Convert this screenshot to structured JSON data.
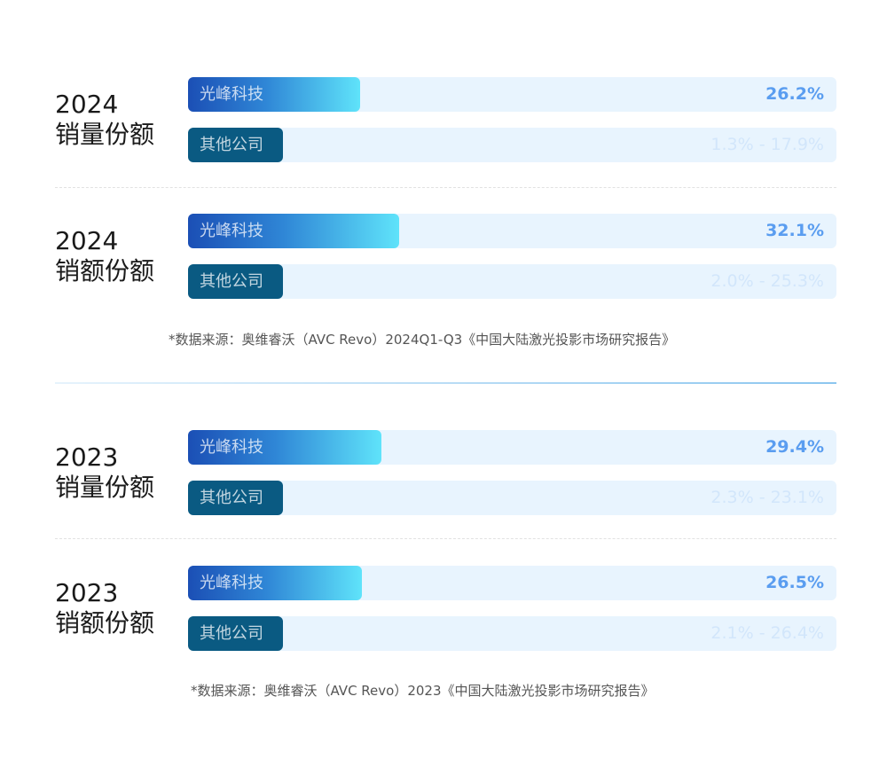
{
  "chart_data": [
    {
      "type": "bar",
      "year_label": "2024",
      "metric_label": "销量份额",
      "series": [
        {
          "name": "光峰科技",
          "value": 26.2,
          "label": "26.2%"
        },
        {
          "name": "其他公司",
          "range": [
            1.3,
            17.9
          ],
          "label": "1.3% - 17.9%"
        }
      ]
    },
    {
      "type": "bar",
      "year_label": "2024",
      "metric_label": "销额份额",
      "series": [
        {
          "name": "光峰科技",
          "value": 32.1,
          "label": "32.1%"
        },
        {
          "name": "其他公司",
          "range": [
            2.0,
            25.3
          ],
          "label": "2.0% - 25.3%"
        }
      ]
    },
    {
      "type": "bar",
      "year_label": "2023",
      "metric_label": "销量份额",
      "series": [
        {
          "name": "光峰科技",
          "value": 29.4,
          "label": "29.4%"
        },
        {
          "name": "其他公司",
          "range": [
            2.3,
            23.1
          ],
          "label": "2.3% - 23.1%"
        }
      ]
    },
    {
      "type": "bar",
      "year_label": "2023",
      "metric_label": "销额份额",
      "series": [
        {
          "name": "光峰科技",
          "value": 26.5,
          "label": "26.5%"
        },
        {
          "name": "其他公司",
          "range": [
            2.1,
            26.4
          ],
          "label": "2.1% - 26.4%"
        }
      ]
    }
  ],
  "sources": [
    "*数据来源：奥维睿沃（AVC Revo）2024Q1-Q3《中国大陆激光投影市场研究报告》",
    "*数据来源：奥维睿沃（AVC Revo）2023《中国大陆激光投影市场研究报告》"
  ],
  "colors": {
    "main_start": "#1b4fb5",
    "main_end": "#5fe3fa",
    "other": "#0a5a82",
    "track": "#e8f4fe",
    "value": "#5a9df0"
  }
}
